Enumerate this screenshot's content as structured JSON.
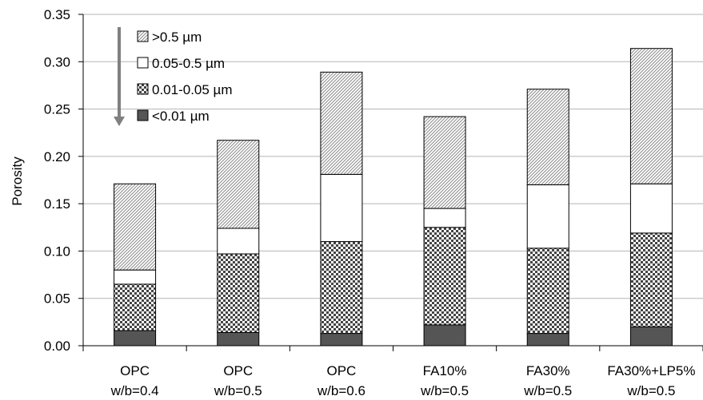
{
  "chart_data": {
    "type": "bar",
    "stacked": true,
    "categories": [
      [
        "OPC",
        "w/b=0.4"
      ],
      [
        "OPC",
        "w/b=0.5"
      ],
      [
        "OPC",
        "w/b=0.6"
      ],
      [
        "FA10%",
        "w/b=0.5"
      ],
      [
        "FA30%",
        "w/b=0.5"
      ],
      [
        "FA30%+LP5%",
        "w/b=0.5"
      ]
    ],
    "series": [
      {
        "name": "<0.01 µm",
        "pattern": "solid-dark",
        "color": "#555555",
        "values": [
          0.016,
          0.014,
          0.013,
          0.022,
          0.013,
          0.02
        ]
      },
      {
        "name": "0.01-0.05 µm",
        "pattern": "checker",
        "color": "#444444",
        "values": [
          0.049,
          0.083,
          0.097,
          0.103,
          0.09,
          0.099
        ]
      },
      {
        "name": "0.05-0.5 µm",
        "pattern": "white",
        "color": "#ffffff",
        "values": [
          0.015,
          0.027,
          0.071,
          0.02,
          0.067,
          0.052
        ]
      },
      {
        "name": ">0.5 µm",
        "pattern": "diagonal-hatch",
        "color": "#888888",
        "values": [
          0.091,
          0.093,
          0.108,
          0.097,
          0.101,
          0.143
        ]
      }
    ],
    "legend_order": [
      ">0.5 µm",
      "0.05-0.5 µm",
      "0.01-0.05 µm",
      "<0.01 µm"
    ],
    "legend_placement": "top-left",
    "legend_arrow": "down",
    "ylabel": "Porosity",
    "xlabel": "",
    "title": "",
    "ylim": [
      0,
      0.35
    ],
    "yticks": [
      "0.00",
      "0.05",
      "0.10",
      "0.15",
      "0.20",
      "0.25",
      "0.30",
      "0.35"
    ],
    "grid": true
  }
}
